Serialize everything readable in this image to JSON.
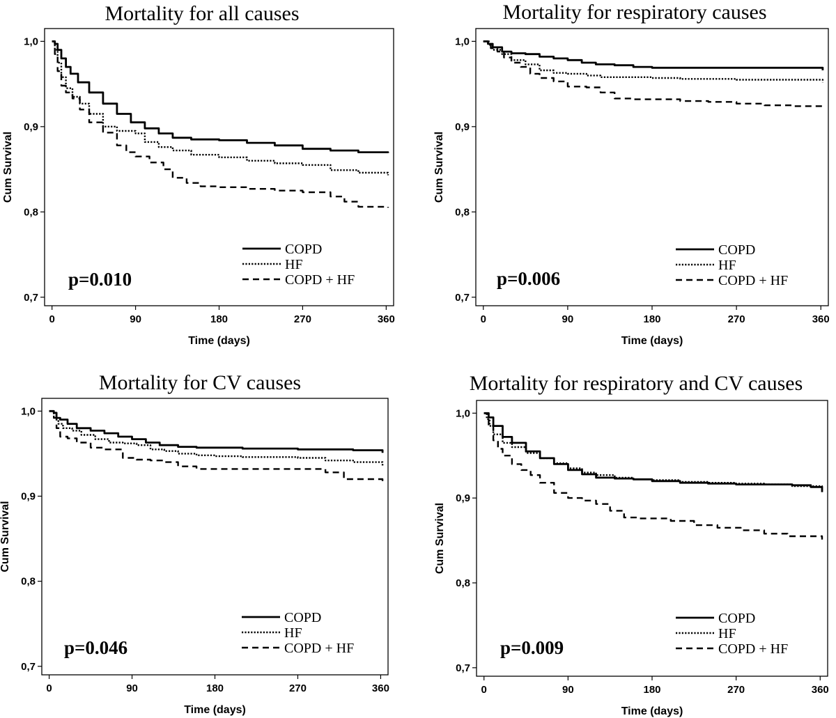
{
  "chart_data": [
    {
      "type": "line",
      "title": "Mortality for all causes",
      "xlabel": "Time (days)",
      "ylabel": "Cum Survival",
      "xlim": [
        -8,
        368
      ],
      "ylim": [
        0.69,
        1.015
      ],
      "xticks": [
        0,
        90,
        180,
        270,
        360
      ],
      "xtick_labels": [
        "0",
        "90",
        "180",
        "270",
        "360"
      ],
      "yticks": [
        0.7,
        0.8,
        0.9,
        1.0
      ],
      "ytick_labels": [
        "0,7",
        "0,8",
        "0,9",
        "1,0"
      ],
      "p_value": "p=0.010",
      "legend_position": "bottom-right",
      "series": [
        {
          "name": "COPD",
          "style": "solid",
          "x": [
            0,
            3,
            6,
            10,
            15,
            20,
            28,
            40,
            55,
            70,
            85,
            100,
            115,
            130,
            150,
            180,
            210,
            240,
            270,
            300,
            330,
            362
          ],
          "y": [
            1.0,
            0.997,
            0.99,
            0.98,
            0.97,
            0.962,
            0.952,
            0.94,
            0.927,
            0.915,
            0.905,
            0.898,
            0.892,
            0.887,
            0.885,
            0.884,
            0.881,
            0.878,
            0.874,
            0.872,
            0.87,
            0.869
          ]
        },
        {
          "name": "HF",
          "style": "dotted",
          "x": [
            0,
            3,
            6,
            10,
            15,
            22,
            30,
            40,
            55,
            70,
            90,
            100,
            115,
            130,
            150,
            180,
            210,
            240,
            270,
            300,
            330,
            362
          ],
          "y": [
            1.0,
            0.99,
            0.975,
            0.958,
            0.945,
            0.935,
            0.927,
            0.915,
            0.9,
            0.895,
            0.892,
            0.882,
            0.876,
            0.872,
            0.867,
            0.864,
            0.86,
            0.857,
            0.855,
            0.849,
            0.846,
            0.843
          ]
        },
        {
          "name": "COPD + HF",
          "style": "dashed",
          "x": [
            0,
            3,
            6,
            10,
            15,
            22,
            30,
            40,
            55,
            70,
            80,
            90,
            105,
            120,
            130,
            145,
            160,
            180,
            210,
            240,
            270,
            300,
            315,
            330,
            362
          ],
          "y": [
            1.0,
            0.985,
            0.965,
            0.948,
            0.94,
            0.933,
            0.92,
            0.905,
            0.893,
            0.878,
            0.87,
            0.865,
            0.858,
            0.85,
            0.84,
            0.834,
            0.83,
            0.829,
            0.827,
            0.825,
            0.823,
            0.818,
            0.812,
            0.806,
            0.805
          ]
        }
      ]
    },
    {
      "type": "line",
      "title": "Mortality for respiratory causes",
      "xlabel": "Time (days)",
      "ylabel": "Cum Survival",
      "xlim": [
        -8,
        368
      ],
      "ylim": [
        0.69,
        1.015
      ],
      "xticks": [
        0,
        90,
        180,
        270,
        360
      ],
      "xtick_labels": [
        "0",
        "90",
        "180",
        "270",
        "360"
      ],
      "yticks": [
        0.7,
        0.8,
        0.9,
        1.0
      ],
      "ytick_labels": [
        "0,7",
        "0,8",
        "0,9",
        "1,0"
      ],
      "p_value": "p=0.006",
      "legend_position": "bottom-right",
      "series": [
        {
          "name": "COPD",
          "style": "solid",
          "x": [
            0,
            5,
            10,
            20,
            30,
            45,
            60,
            75,
            90,
            105,
            120,
            140,
            160,
            180,
            210,
            240,
            270,
            300,
            330,
            355,
            362
          ],
          "y": [
            1.0,
            0.997,
            0.993,
            0.988,
            0.986,
            0.985,
            0.982,
            0.98,
            0.978,
            0.975,
            0.973,
            0.972,
            0.97,
            0.969,
            0.969,
            0.969,
            0.969,
            0.969,
            0.969,
            0.969,
            0.966
          ]
        },
        {
          "name": "HF",
          "style": "dotted",
          "x": [
            0,
            5,
            10,
            20,
            30,
            45,
            60,
            75,
            90,
            110,
            125,
            140,
            160,
            180,
            210,
            240,
            270,
            300,
            330,
            362
          ],
          "y": [
            1.0,
            0.996,
            0.99,
            0.985,
            0.978,
            0.973,
            0.966,
            0.963,
            0.962,
            0.96,
            0.958,
            0.958,
            0.958,
            0.957,
            0.956,
            0.956,
            0.955,
            0.955,
            0.955,
            0.952
          ]
        },
        {
          "name": "COPD + HF",
          "style": "dashed",
          "x": [
            0,
            8,
            15,
            22,
            30,
            40,
            50,
            60,
            75,
            90,
            110,
            125,
            140,
            160,
            180,
            210,
            240,
            270,
            300,
            330,
            362
          ],
          "y": [
            1.0,
            0.992,
            0.988,
            0.981,
            0.975,
            0.97,
            0.962,
            0.957,
            0.953,
            0.947,
            0.946,
            0.94,
            0.933,
            0.932,
            0.932,
            0.93,
            0.929,
            0.927,
            0.925,
            0.924,
            0.92
          ]
        }
      ]
    },
    {
      "type": "line",
      "title": "Mortality for CV causes",
      "xlabel": "Time (days)",
      "ylabel": "Cum Survival",
      "xlim": [
        -8,
        368
      ],
      "ylim": [
        0.69,
        1.015
      ],
      "xticks": [
        0,
        90,
        180,
        270,
        360
      ],
      "xtick_labels": [
        "0",
        "90",
        "180",
        "270",
        "360"
      ],
      "yticks": [
        0.7,
        0.8,
        0.9,
        1.0
      ],
      "ytick_labels": [
        "0,7",
        "0,8",
        "0,9",
        "1,0"
      ],
      "p_value": "p=0.046",
      "legend_position": "bottom-right",
      "series": [
        {
          "name": "COPD",
          "style": "solid",
          "x": [
            0,
            5,
            8,
            12,
            20,
            30,
            45,
            60,
            75,
            90,
            105,
            120,
            140,
            160,
            180,
            210,
            240,
            270,
            300,
            330,
            362
          ],
          "y": [
            1.0,
            0.998,
            0.992,
            0.99,
            0.985,
            0.98,
            0.977,
            0.974,
            0.97,
            0.967,
            0.963,
            0.96,
            0.958,
            0.957,
            0.957,
            0.956,
            0.956,
            0.955,
            0.955,
            0.954,
            0.951
          ]
        },
        {
          "name": "HF",
          "style": "dotted",
          "x": [
            0,
            5,
            10,
            15,
            25,
            35,
            50,
            65,
            80,
            95,
            110,
            125,
            140,
            160,
            180,
            210,
            240,
            270,
            300,
            330,
            362
          ],
          "y": [
            1.0,
            0.993,
            0.985,
            0.98,
            0.977,
            0.972,
            0.967,
            0.963,
            0.962,
            0.96,
            0.955,
            0.953,
            0.95,
            0.948,
            0.947,
            0.946,
            0.946,
            0.945,
            0.942,
            0.94,
            0.935
          ]
        },
        {
          "name": "COPD + HF",
          "style": "dashed",
          "x": [
            0,
            5,
            8,
            12,
            20,
            30,
            45,
            60,
            80,
            95,
            110,
            125,
            140,
            160,
            180,
            210,
            240,
            270,
            300,
            320,
            362
          ],
          "y": [
            1.0,
            0.992,
            0.98,
            0.97,
            0.968,
            0.963,
            0.957,
            0.955,
            0.945,
            0.943,
            0.942,
            0.94,
            0.935,
            0.932,
            0.932,
            0.932,
            0.932,
            0.932,
            0.928,
            0.92,
            0.915
          ]
        }
      ]
    },
    {
      "type": "line",
      "title": "Mortality for respiratory and CV causes",
      "xlabel": "Time (days)",
      "ylabel": "Cum Survival",
      "xlim": [
        -8,
        368
      ],
      "ylim": [
        0.69,
        1.015
      ],
      "xticks": [
        0,
        90,
        180,
        270,
        360
      ],
      "xtick_labels": [
        "0",
        "90",
        "180",
        "270",
        "360"
      ],
      "yticks": [
        0.7,
        0.8,
        0.9,
        1.0
      ],
      "ytick_labels": [
        "0,7",
        "0,8",
        "0,9",
        "1,0"
      ],
      "p_value": "p=0.009",
      "legend_position": "bottom-right",
      "series": [
        {
          "name": "COPD",
          "style": "solid",
          "x": [
            0,
            5,
            10,
            20,
            30,
            45,
            60,
            75,
            90,
            105,
            120,
            140,
            160,
            180,
            210,
            240,
            270,
            300,
            330,
            350,
            362
          ],
          "y": [
            1.0,
            0.995,
            0.985,
            0.972,
            0.965,
            0.955,
            0.947,
            0.94,
            0.933,
            0.928,
            0.924,
            0.923,
            0.922,
            0.92,
            0.918,
            0.917,
            0.916,
            0.916,
            0.915,
            0.913,
            0.907
          ]
        },
        {
          "name": "HF",
          "style": "dotted",
          "x": [
            0,
            3,
            6,
            10,
            20,
            30,
            45,
            60,
            75,
            90,
            105,
            120,
            140,
            160,
            180,
            210,
            240,
            270,
            300,
            330,
            362
          ],
          "y": [
            1.0,
            0.993,
            0.985,
            0.975,
            0.965,
            0.96,
            0.953,
            0.947,
            0.941,
            0.935,
            0.93,
            0.927,
            0.924,
            0.922,
            0.921,
            0.919,
            0.918,
            0.917,
            0.916,
            0.914,
            0.91
          ]
        },
        {
          "name": "COPD + HF",
          "style": "dashed",
          "x": [
            0,
            5,
            10,
            15,
            20,
            30,
            40,
            50,
            60,
            75,
            90,
            105,
            120,
            135,
            150,
            165,
            180,
            200,
            225,
            250,
            275,
            300,
            325,
            362
          ],
          "y": [
            1.0,
            0.985,
            0.968,
            0.958,
            0.95,
            0.94,
            0.933,
            0.927,
            0.918,
            0.906,
            0.9,
            0.897,
            0.893,
            0.885,
            0.877,
            0.876,
            0.876,
            0.873,
            0.868,
            0.865,
            0.862,
            0.858,
            0.855,
            0.851
          ]
        }
      ]
    }
  ]
}
